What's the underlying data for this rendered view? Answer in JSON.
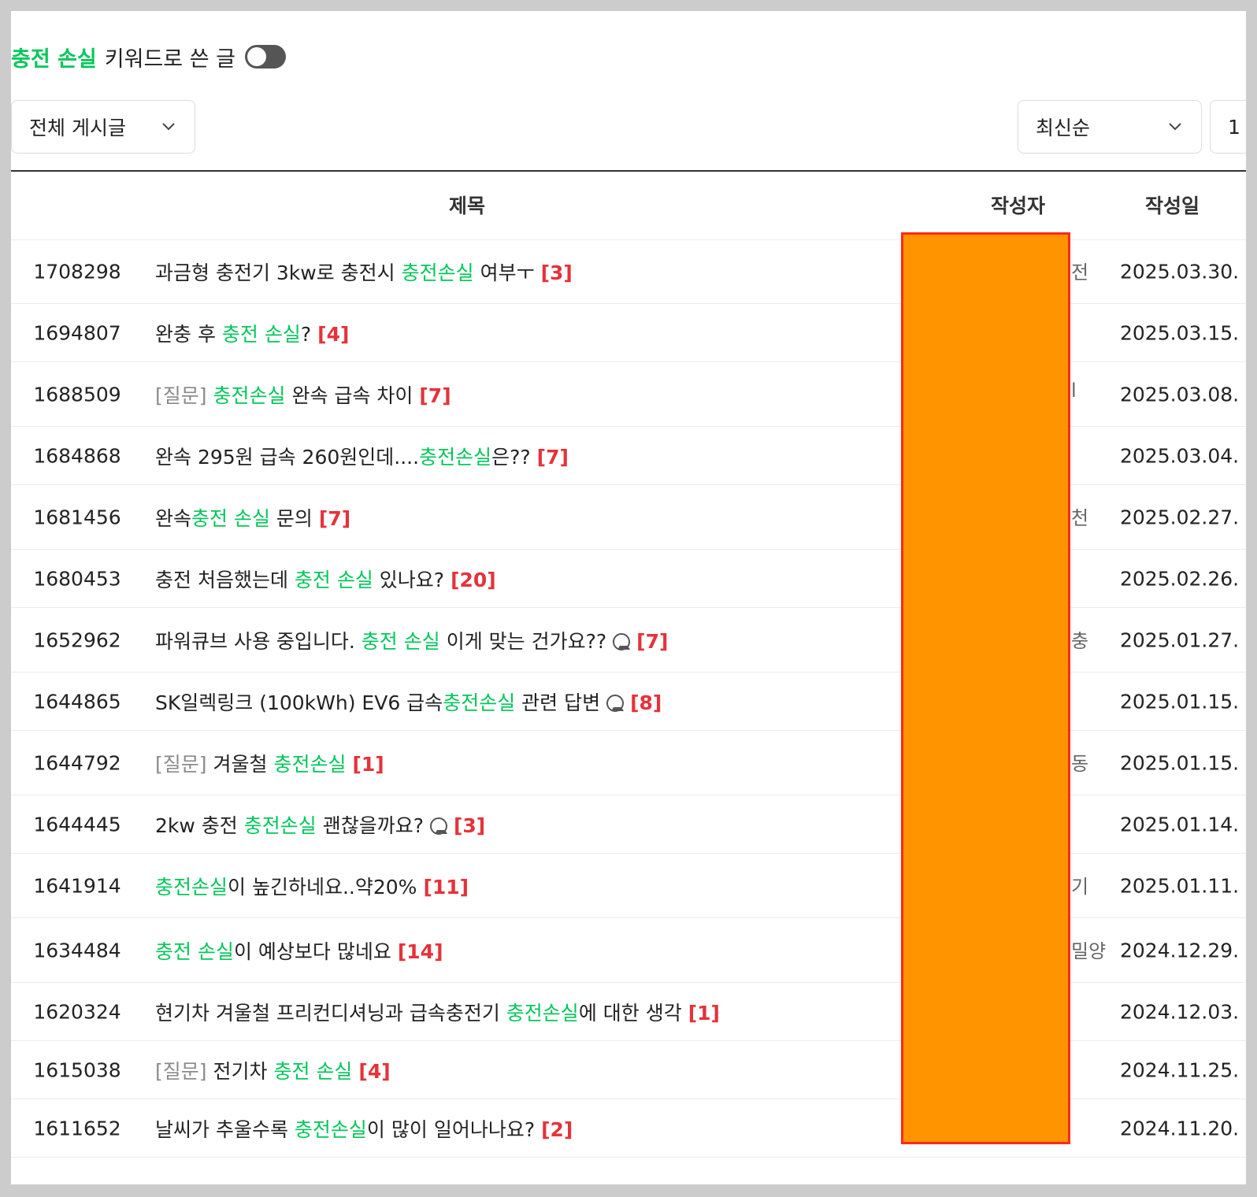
{
  "header": {
    "keyword": "충전 손실",
    "suffix": "키워드로 쓴 글",
    "toggle_on": false
  },
  "filters": {
    "board": "전체 게시글",
    "sort": "최신순",
    "count": "1"
  },
  "table": {
    "columns": {
      "title": "제목",
      "author": "작성자",
      "date": "작성일"
    },
    "rows": [
      {
        "num": "1708298",
        "prefix": "",
        "before": "과금형 충전기 3kw로 충전시 ",
        "highlight": "충전손실",
        "after": " 여부ㅜ",
        "image": false,
        "comments": "[3]",
        "date": "2025.03.30.",
        "author_peek": "전"
      },
      {
        "num": "1694807",
        "prefix": "",
        "before": "완충 후 ",
        "highlight": "충전 손실",
        "after": "?",
        "image": false,
        "comments": "[4]",
        "date": "2025.03.15.",
        "author_peek": ""
      },
      {
        "num": "1688509",
        "prefix": "[질문]",
        "before": "",
        "highlight": "충전손실",
        "after": " 완속 급속 차이",
        "image": false,
        "comments": "[7]",
        "date": "2025.03.08.",
        "author_peek": "l"
      },
      {
        "num": "1684868",
        "prefix": "",
        "before": "완속 295원 급속 260원인데....",
        "highlight": "충전손실",
        "after": "은??",
        "image": false,
        "comments": "[7]",
        "date": "2025.03.04.",
        "author_peek": ""
      },
      {
        "num": "1681456",
        "prefix": "",
        "before": "완속",
        "highlight": "충전 손실",
        "after": " 문의",
        "image": false,
        "comments": "[7]",
        "date": "2025.02.27.",
        "author_peek": "천"
      },
      {
        "num": "1680453",
        "prefix": "",
        "before": "충전 처음했는데 ",
        "highlight": "충전 손실",
        "after": " 있나요?",
        "image": false,
        "comments": "[20]",
        "date": "2025.02.26.",
        "author_peek": ""
      },
      {
        "num": "1652962",
        "prefix": "",
        "before": "파워큐브 사용 중입니다. ",
        "highlight": "충전 손실",
        "after": " 이게 맞는 건가요??",
        "image": true,
        "comments": "[7]",
        "date": "2025.01.27.",
        "author_peek": "충"
      },
      {
        "num": "1644865",
        "prefix": "",
        "before": "SK일렉링크 (100kWh) EV6 급속",
        "highlight": "충전손실",
        "after": " 관련 답변",
        "image": true,
        "comments": "[8]",
        "date": "2025.01.15.",
        "author_peek": ""
      },
      {
        "num": "1644792",
        "prefix": "[질문]",
        "before": "겨울철 ",
        "highlight": "충전손실",
        "after": "",
        "image": false,
        "comments": "[1]",
        "date": "2025.01.15.",
        "author_peek": "동"
      },
      {
        "num": "1644445",
        "prefix": "",
        "before": "2kw 충전 ",
        "highlight": "충전손실",
        "after": " 괜찮을까요?",
        "image": true,
        "comments": "[3]",
        "date": "2025.01.14.",
        "author_peek": ""
      },
      {
        "num": "1641914",
        "prefix": "",
        "before": "",
        "highlight": "충전손실",
        "after": "이 높긴하네요..약20%",
        "image": false,
        "comments": "[11]",
        "date": "2025.01.11.",
        "author_peek": "기"
      },
      {
        "num": "1634484",
        "prefix": "",
        "before": "",
        "highlight": "충전 손실",
        "after": "이 예상보다 많네요",
        "image": false,
        "comments": "[14]",
        "date": "2024.12.29.",
        "author_peek": "밀양"
      },
      {
        "num": "1620324",
        "prefix": "",
        "before": "현기차 겨울철 프리컨디셔닝과 급속충전기 ",
        "highlight": "충전손실",
        "after": "에 대한 생각",
        "image": false,
        "comments": "[1]",
        "date": "2024.12.03.",
        "author_peek": ""
      },
      {
        "num": "1615038",
        "prefix": "[질문]",
        "before": "전기차 ",
        "highlight": "충전 손실",
        "after": "",
        "image": false,
        "comments": "[4]",
        "date": "2024.11.25.",
        "author_peek": ""
      },
      {
        "num": "1611652",
        "prefix": "",
        "before": "날씨가 추울수록 ",
        "highlight": "충전손실",
        "after": "이 많이 일어나나요?",
        "image": false,
        "comments": "[2]",
        "date": "2024.11.20.",
        "author_peek": ""
      }
    ]
  },
  "colors": {
    "highlight": "#03c75a",
    "comments": "#e5323a",
    "redaction_fill": "#ff9300",
    "redaction_border": "#ff2a1a"
  }
}
